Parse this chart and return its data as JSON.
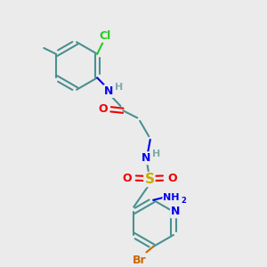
{
  "bg_color": "#ebebeb",
  "bond_color": "#4a9090",
  "bond_width": 1.5,
  "text_colors": {
    "N": "#0000ee",
    "O": "#ee0000",
    "S": "#ccaa00",
    "Cl": "#22cc22",
    "Br": "#cc6600",
    "H": "#80aaaa",
    "C": "#3d8080"
  },
  "font_size": 9,
  "figsize": [
    3.0,
    3.0
  ],
  "dpi": 100,
  "xlim": [
    0,
    10
  ],
  "ylim": [
    0,
    10
  ]
}
